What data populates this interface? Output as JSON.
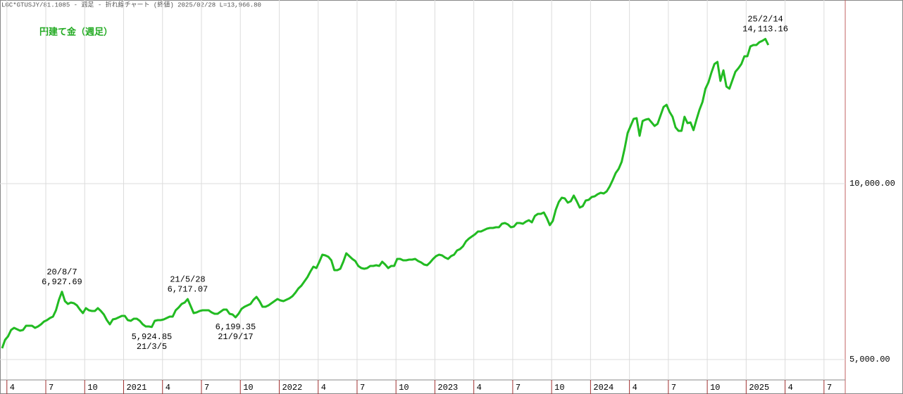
{
  "header": "LGC*GTUSJY/81.1085 - 週足 - 折れ線チャート (終値)  2025/02/28 L=13,966.80",
  "chart_data": {
    "type": "line",
    "series": [
      {
        "name": "円建て金（週足）",
        "color": "#22bb22",
        "values": [
          5320,
          5560,
          5660,
          5840,
          5900,
          5860,
          5820,
          5840,
          5960,
          5960,
          5960,
          5900,
          5940,
          6000,
          6080,
          6120,
          6180,
          6220,
          6400,
          6700,
          6927.69,
          6660,
          6580,
          6620,
          6600,
          6540,
          6420,
          6320,
          6460,
          6400,
          6380,
          6380,
          6460,
          6380,
          6280,
          6120,
          6000,
          6140,
          6160,
          6200,
          6240,
          6240,
          6120,
          6100,
          6160,
          6160,
          6100,
          6000,
          5940,
          5940,
          5924.85,
          6100,
          6120,
          6120,
          6140,
          6180,
          6220,
          6220,
          6400,
          6480,
          6580,
          6620,
          6717.07,
          6520,
          6320,
          6340,
          6380,
          6400,
          6400,
          6400,
          6340,
          6300,
          6300,
          6360,
          6420,
          6420,
          6300,
          6280,
          6199.35,
          6300,
          6440,
          6500,
          6540,
          6580,
          6700,
          6780,
          6660,
          6500,
          6500,
          6540,
          6600,
          6660,
          6720,
          6680,
          6660,
          6700,
          6740,
          6800,
          6900,
          7020,
          7100,
          7220,
          7340,
          7500,
          7640,
          7600,
          7780,
          7980,
          7960,
          7920,
          7820,
          7540,
          7540,
          7580,
          7780,
          8020,
          7940,
          7860,
          7800,
          7660,
          7600,
          7580,
          7600,
          7660,
          7660,
          7680,
          7660,
          7780,
          7700,
          7600,
          7660,
          7660,
          7860,
          7860,
          7820,
          7820,
          7840,
          7840,
          7860,
          7800,
          7760,
          7700,
          7680,
          7760,
          7860,
          7940,
          7980,
          7960,
          7900,
          7860,
          7940,
          7980,
          8100,
          8140,
          8220,
          8360,
          8440,
          8500,
          8560,
          8640,
          8640,
          8680,
          8720,
          8740,
          8740,
          8760,
          8760,
          8860,
          8880,
          8840,
          8760,
          8780,
          8880,
          8880,
          8860,
          8920,
          8960,
          8900,
          9080,
          9140,
          9140,
          9180,
          9020,
          8820,
          8940,
          9260,
          9480,
          9600,
          9580,
          9460,
          9500,
          9660,
          9500,
          9320,
          9360,
          9520,
          9540,
          9620,
          9640,
          9700,
          9740,
          9720,
          9780,
          9920,
          10100,
          10300,
          10420,
          10620,
          11000,
          11440,
          11640,
          11840,
          11860,
          11360,
          11780,
          11820,
          11840,
          11740,
          11640,
          11700,
          11940,
          12180,
          12240,
          12040,
          11900,
          11600,
          11500,
          11500,
          11900,
          11720,
          11740,
          11520,
          11820,
          12100,
          12320,
          12700,
          12880,
          13160,
          13400,
          13460,
          12920,
          13220,
          12760,
          12700,
          12940,
          13180,
          13280,
          13400,
          13620,
          13620,
          13900,
          13940,
          13940,
          14020,
          14060,
          14113.16,
          13940
        ]
      }
    ],
    "annotations": [
      {
        "x": 20,
        "text": "20/8/7",
        "label": "6,927.69",
        "position": "above"
      },
      {
        "x": 50,
        "text": "21/3/5",
        "label": "5,924.85",
        "position": "below"
      },
      {
        "x": 62,
        "text": "21/5/28",
        "label": "6,717.07",
        "position": "above"
      },
      {
        "x": 78,
        "text": "21/9/17",
        "label": "6,199.35",
        "position": "below"
      },
      {
        "x": 255,
        "text": "25/2/14",
        "label": "14,113.16",
        "position": "above"
      }
    ],
    "xlim": [
      -0.7,
      281.7
    ],
    "xticks": [
      {
        "value": 1.6,
        "label": "4"
      },
      {
        "value": 14.6,
        "label": "7"
      },
      {
        "value": 27.6,
        "label": "10"
      },
      {
        "value": 40.6,
        "label": "2021"
      },
      {
        "value": 53.6,
        "label": "4"
      },
      {
        "value": 66.6,
        "label": "7"
      },
      {
        "value": 79.6,
        "label": "10"
      },
      {
        "value": 92.6,
        "label": "2022"
      },
      {
        "value": 105.6,
        "label": "4"
      },
      {
        "value": 118.6,
        "label": "7"
      },
      {
        "value": 131.6,
        "label": "10"
      },
      {
        "value": 144.6,
        "label": "2023"
      },
      {
        "value": 157.6,
        "label": "4"
      },
      {
        "value": 170.6,
        "label": "7"
      },
      {
        "value": 183.6,
        "label": "10"
      },
      {
        "value": 196.6,
        "label": "2024"
      },
      {
        "value": 209.6,
        "label": "4"
      },
      {
        "value": 222.6,
        "label": "7"
      },
      {
        "value": 235.6,
        "label": "10"
      },
      {
        "value": 248.6,
        "label": "2025"
      },
      {
        "value": 261.6,
        "label": "4"
      },
      {
        "value": 274.6,
        "label": "7"
      }
    ],
    "ylim": [
      4420,
      15220
    ],
    "yticks": [
      {
        "value": 5000,
        "label": "5,000.00"
      },
      {
        "value": 10000,
        "label": "10,000.00"
      }
    ],
    "grid": true
  }
}
